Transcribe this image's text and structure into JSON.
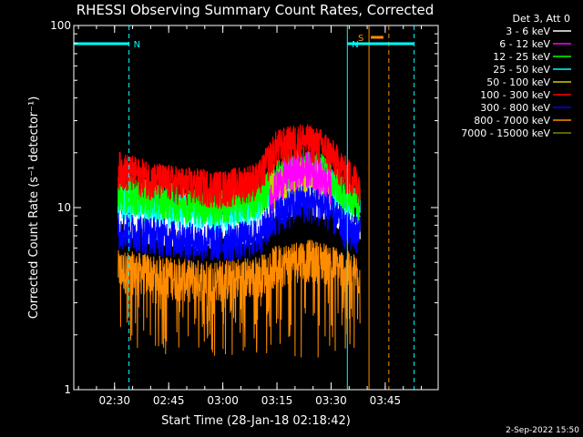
{
  "chart_data": {
    "type": "line",
    "title": "RHESSI Observing Summary Count Rates, Corrected",
    "xlabel": "Start Time (28-Jan-18 02:18:42)",
    "ylabel": "Corrected Count Rate (s⁻¹ detector⁻¹)",
    "yscale": "log",
    "ylim": [
      1,
      100
    ],
    "xlim": [
      "02:18:42",
      "03:59:40"
    ],
    "x_ticks": [
      "02:30",
      "02:45",
      "03:00",
      "03:15",
      "03:30",
      "03:45"
    ],
    "y_ticks": [
      "1",
      "10",
      "100"
    ],
    "grid": false,
    "legend": {
      "title": "Det 3, Att 0",
      "placement": "right"
    },
    "series": [
      {
        "name": "3 - 6 keV",
        "color": "#ffffff",
        "x": [
          "02:31",
          "02:40",
          "02:50",
          "03:00",
          "03:10",
          "03:15",
          "03:22",
          "03:28",
          "03:34",
          "03:38"
        ],
        "values": [
          8.5,
          8.0,
          7.5,
          7.2,
          8.0,
          10.5,
          12.0,
          11.0,
          8.5,
          8.0
        ]
      },
      {
        "name": "6 - 12 keV",
        "color": "#ff00ff",
        "x": [
          "03:13",
          "03:18",
          "03:24",
          "03:30"
        ],
        "values": [
          11.0,
          15.0,
          16.0,
          13.0
        ]
      },
      {
        "name": "12 - 25 keV",
        "color": "#00ff00",
        "x": [
          "02:31",
          "02:40",
          "02:50",
          "03:00",
          "03:10",
          "03:15",
          "03:22",
          "03:28",
          "03:34",
          "03:38"
        ],
        "values": [
          12.0,
          11.0,
          10.5,
          10.0,
          11.0,
          14.5,
          17.0,
          15.5,
          11.5,
          10.5
        ]
      },
      {
        "name": "25 - 50 keV",
        "color": "#00ffff",
        "x": [
          "02:31",
          "02:40",
          "02:50",
          "03:00",
          "03:10",
          "03:15",
          "03:22",
          "03:28",
          "03:34",
          "03:38"
        ],
        "values": [
          11.0,
          10.0,
          9.5,
          9.0,
          10.0,
          13.0,
          15.0,
          14.0,
          10.5,
          10.0
        ]
      },
      {
        "name": "50 - 100 keV",
        "color": "#cccc00",
        "x": [
          "03:13",
          "03:18",
          "03:24",
          "03:30"
        ],
        "values": [
          12.0,
          14.0,
          14.5,
          12.5
        ]
      },
      {
        "name": "100 - 300 keV",
        "color": "#ff0000",
        "x": [
          "02:31",
          "02:40",
          "02:50",
          "03:00",
          "03:10",
          "03:15",
          "03:22",
          "03:28",
          "03:34",
          "03:38"
        ],
        "values": [
          16.0,
          14.0,
          13.0,
          12.5,
          14.0,
          21.0,
          23.0,
          21.0,
          15.0,
          13.0
        ]
      },
      {
        "name": "300 - 800 keV",
        "color": "#0000ff",
        "x": [
          "02:31",
          "02:40",
          "02:50",
          "03:00",
          "03:10",
          "03:15",
          "03:22",
          "03:28",
          "03:34",
          "03:38"
        ],
        "values": [
          7.5,
          7.0,
          6.5,
          6.3,
          6.8,
          9.0,
          10.5,
          10.0,
          7.5,
          7.0
        ]
      },
      {
        "name": "800 - 7000 keV",
        "color": "#ff8c00",
        "x": [
          "02:31",
          "02:40",
          "02:50",
          "03:00",
          "03:10",
          "03:15",
          "03:22",
          "03:28",
          "03:34",
          "03:38"
        ],
        "values": [
          4.5,
          4.3,
          4.0,
          4.0,
          4.2,
          4.8,
          5.2,
          5.0,
          4.5,
          4.2
        ]
      },
      {
        "name": "7000 - 15000 keV",
        "color": "#808000",
        "x": [],
        "values": []
      }
    ],
    "annotations": [
      {
        "label": "N",
        "color": "#00ffff",
        "x_start": "02:18:42",
        "x_end": "02:34:00"
      },
      {
        "label": "N",
        "color": "#00ffff",
        "x_start": "03:34:30",
        "x_end": "03:53:00"
      },
      {
        "label": "S",
        "color": "#ff8c00",
        "x_start": "03:41:00",
        "x_end": "03:44:30"
      }
    ],
    "vertical_lines": [
      {
        "x": "02:34:00",
        "color": "#00ffff",
        "style": "dashed"
      },
      {
        "x": "03:34:30",
        "color": "#00ffff",
        "style": "solid"
      },
      {
        "x": "03:40:30",
        "color": "#ff8c00",
        "style": "solid"
      },
      {
        "x": "03:46:00",
        "color": "#ff8c00",
        "style": "dashed"
      },
      {
        "x": "03:53:00",
        "color": "#00ffff",
        "style": "dashed"
      }
    ],
    "data_window": [
      "02:31:00",
      "03:38:30"
    ],
    "footer": "2-Sep-2022 15:50"
  }
}
